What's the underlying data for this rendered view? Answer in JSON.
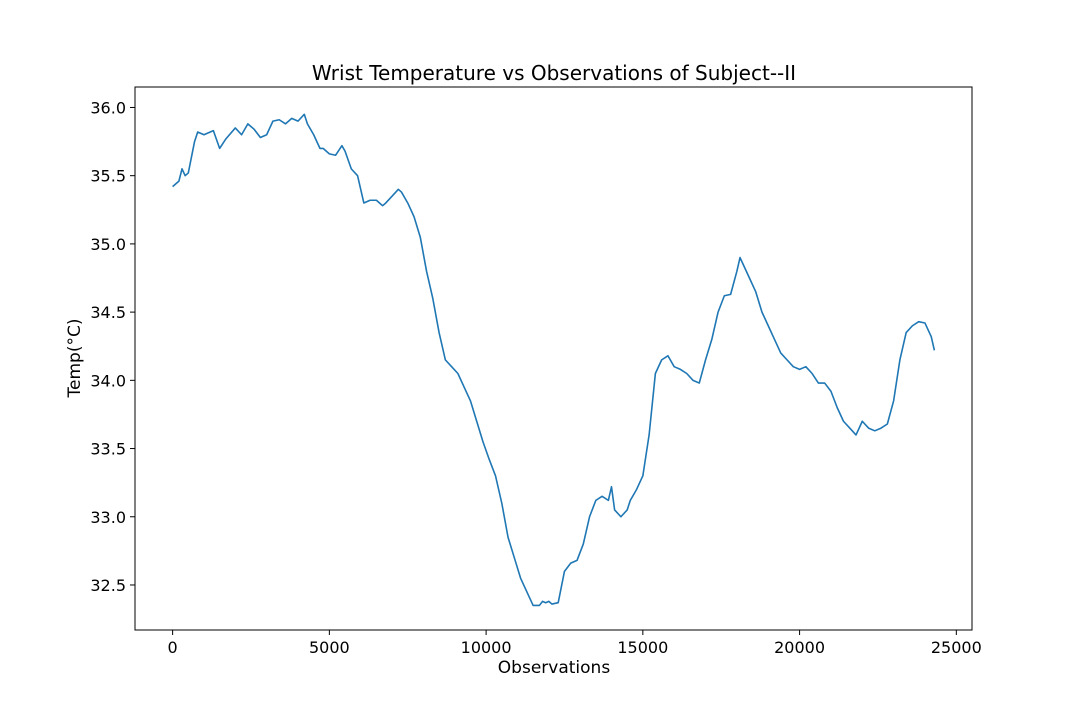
{
  "chart_data": {
    "type": "line",
    "title": "Wrist Temperature vs Observations of Subject--II",
    "xlabel": "Observations",
    "ylabel": "Temp(°C)",
    "xlim": [
      -1200,
      25500
    ],
    "ylim": [
      32.17,
      36.15
    ],
    "x_ticks": [
      0,
      5000,
      10000,
      15000,
      20000,
      25000
    ],
    "x_tick_labels": [
      "0",
      "5000",
      "10000",
      "15000",
      "20000",
      "25000"
    ],
    "y_ticks": [
      32.5,
      33.0,
      33.5,
      34.0,
      34.5,
      35.0,
      35.5,
      36.0
    ],
    "y_tick_labels": [
      "32.5",
      "33.0",
      "33.5",
      "34.0",
      "34.5",
      "35.0",
      "35.5",
      "36.0"
    ],
    "grid": false,
    "series": [
      {
        "color": "#1f77b4",
        "x": [
          0,
          200,
          300,
          400,
          500,
          700,
          800,
          1000,
          1300,
          1500,
          1700,
          2000,
          2200,
          2400,
          2600,
          2800,
          3000,
          3200,
          3400,
          3600,
          3800,
          4000,
          4200,
          4300,
          4500,
          4700,
          4800,
          5000,
          5200,
          5400,
          5500,
          5700,
          5900,
          6100,
          6300,
          6500,
          6700,
          6800,
          7000,
          7200,
          7300,
          7500,
          7700,
          7900,
          8100,
          8300,
          8500,
          8700,
          8900,
          9100,
          9300,
          9500,
          9700,
          9900,
          10100,
          10300,
          10500,
          10700,
          10900,
          11100,
          11300,
          11500,
          11700,
          11800,
          11900,
          12000,
          12100,
          12300,
          12500,
          12700,
          12900,
          13100,
          13300,
          13500,
          13700,
          13900,
          14000,
          14100,
          14300,
          14500,
          14600,
          14800,
          15000,
          15200,
          15400,
          15600,
          15800,
          16000,
          16200,
          16400,
          16600,
          16800,
          17000,
          17200,
          17400,
          17600,
          17800,
          18000,
          18100,
          18200,
          18400,
          18600,
          18800,
          19000,
          19200,
          19400,
          19600,
          19800,
          20000,
          20200,
          20400,
          20600,
          20800,
          21000,
          21200,
          21400,
          21600,
          21800,
          22000,
          22200,
          22400,
          22600,
          22800,
          23000,
          23200,
          23400,
          23600,
          23800,
          24000,
          24200,
          24300
        ],
        "values": [
          35.42,
          35.46,
          35.55,
          35.5,
          35.52,
          35.75,
          35.82,
          35.8,
          35.83,
          35.7,
          35.77,
          35.85,
          35.8,
          35.88,
          35.84,
          35.78,
          35.8,
          35.9,
          35.91,
          35.88,
          35.92,
          35.9,
          35.95,
          35.88,
          35.8,
          35.7,
          35.7,
          35.66,
          35.65,
          35.72,
          35.68,
          35.55,
          35.5,
          35.3,
          35.32,
          35.32,
          35.28,
          35.3,
          35.35,
          35.4,
          35.38,
          35.3,
          35.2,
          35.05,
          34.8,
          34.6,
          34.35,
          34.15,
          34.1,
          34.05,
          33.95,
          33.85,
          33.7,
          33.55,
          33.42,
          33.3,
          33.1,
          32.85,
          32.7,
          32.55,
          32.45,
          32.35,
          32.35,
          32.38,
          32.37,
          32.38,
          32.36,
          32.37,
          32.6,
          32.66,
          32.68,
          32.8,
          33.0,
          33.12,
          33.15,
          33.12,
          33.22,
          33.05,
          33.0,
          33.05,
          33.12,
          33.2,
          33.3,
          33.6,
          34.05,
          34.15,
          34.18,
          34.1,
          34.08,
          34.05,
          34.0,
          33.98,
          34.15,
          34.3,
          34.5,
          34.62,
          34.63,
          34.8,
          34.9,
          34.85,
          34.75,
          34.65,
          34.5,
          34.4,
          34.3,
          34.2,
          34.15,
          34.1,
          34.08,
          34.1,
          34.05,
          33.98,
          33.98,
          33.92,
          33.8,
          33.7,
          33.65,
          33.6,
          33.7,
          33.65,
          33.63,
          33.65,
          33.68,
          33.85,
          34.15,
          34.35,
          34.4,
          34.43,
          34.42,
          34.32,
          34.22
        ]
      }
    ]
  }
}
